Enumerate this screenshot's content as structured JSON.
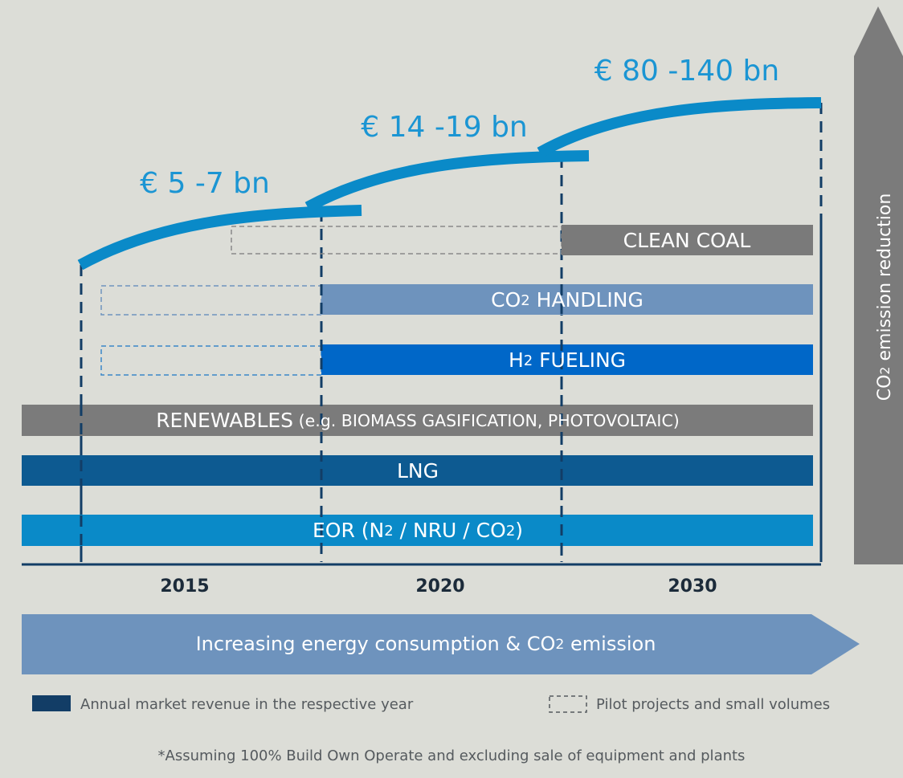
{
  "revenues": [
    "€ 5 -7 bn",
    "€ 14 -19 bn",
    "€ 80 -140 bn"
  ],
  "bars": [
    {
      "label": [
        "CLEAN COAL"
      ]
    },
    {
      "label": [
        "CO",
        "2",
        " HANDLING"
      ]
    },
    {
      "label": [
        "H",
        "2",
        " FUELING"
      ]
    },
    {
      "label": [
        "RENEWABLES",
        " (e.g. BIOMASS GASIFICATION, PHOTOVOLTAIC)"
      ]
    },
    {
      "label": [
        "LNG"
      ]
    },
    {
      "label": [
        "EOR (N",
        "2",
        " / NRU / CO",
        "2",
        ")"
      ]
    }
  ],
  "years": [
    "2015",
    "2020",
    "2030"
  ],
  "arrow_horizontal": [
    "Increasing energy consumption & CO",
    "2",
    " emission"
  ],
  "arrow_vertical": [
    "CO",
    "2",
    " emission reduction"
  ],
  "legend": [
    "Annual market revenue in the respective year",
    "Pilot projects and small volumes"
  ],
  "footnote": "*Assuming 100% Build Own Operate and excluding sale of equipment and plants"
}
